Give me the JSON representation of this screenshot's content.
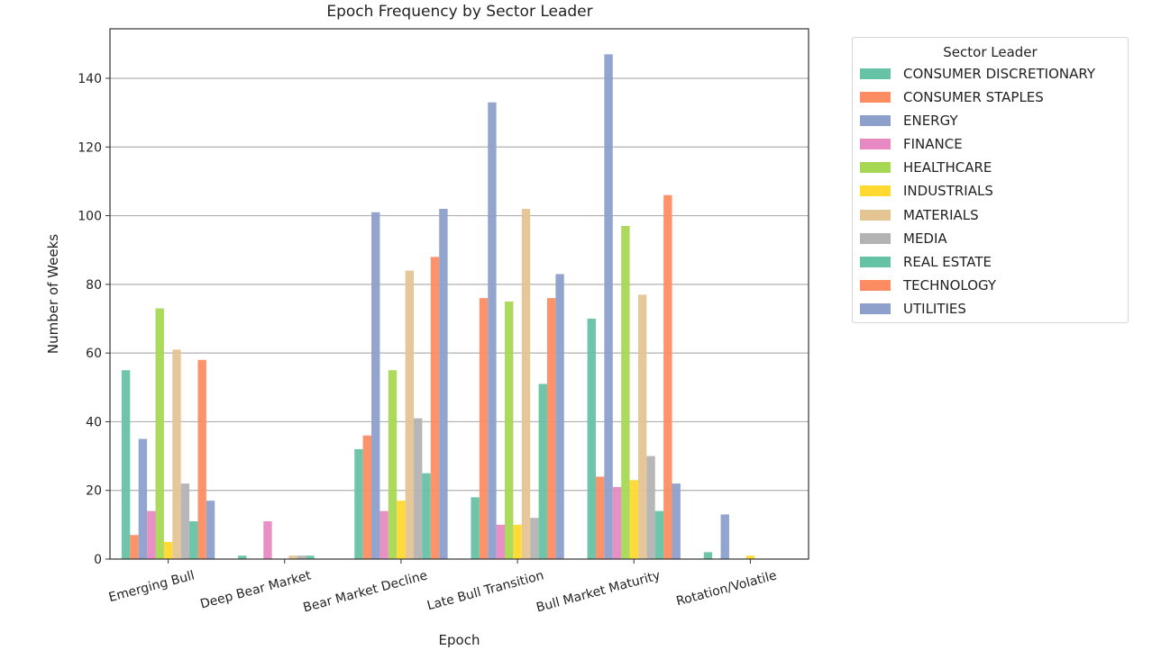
{
  "chart_data": {
    "type": "bar",
    "title": "Epoch Frequency by Sector Leader",
    "xlabel": "Epoch",
    "ylabel": "Number of Weeks",
    "ylim": [
      0,
      154
    ],
    "yticks": [
      0,
      20,
      40,
      60,
      80,
      100,
      120,
      140
    ],
    "grid": "y",
    "legend_title": "Sector Leader",
    "legend_position": "outside upper right",
    "categories": [
      "Emerging Bull",
      "Deep Bear Market",
      "Bear Market Decline",
      "Late Bull Transition",
      "Bull Market Maturity",
      "Rotation/Volatile"
    ],
    "series": [
      {
        "name": "CONSUMER DISCRETIONARY",
        "color": "#66c2a5",
        "values": [
          55,
          1,
          32,
          18,
          70,
          2
        ]
      },
      {
        "name": "CONSUMER STAPLES",
        "color": "#fc8d62",
        "values": [
          7,
          0,
          36,
          76,
          24,
          0
        ]
      },
      {
        "name": "ENERGY",
        "color": "#8da0cb",
        "values": [
          35,
          0,
          101,
          133,
          147,
          13
        ]
      },
      {
        "name": "FINANCE",
        "color": "#e78ac3",
        "values": [
          14,
          11,
          14,
          10,
          21,
          0
        ]
      },
      {
        "name": "HEALTHCARE",
        "color": "#a6d854",
        "values": [
          73,
          0,
          55,
          75,
          97,
          0
        ]
      },
      {
        "name": "INDUSTRIALS",
        "color": "#ffd92f",
        "values": [
          5,
          0,
          17,
          10,
          23,
          1
        ]
      },
      {
        "name": "MATERIALS",
        "color": "#e5c494",
        "values": [
          61,
          1,
          84,
          102,
          77,
          0
        ]
      },
      {
        "name": "MEDIA",
        "color": "#b3b3b3",
        "values": [
          22,
          1,
          41,
          12,
          30,
          0
        ]
      },
      {
        "name": "REAL ESTATE",
        "color": "#66c2a5",
        "values": [
          11,
          1,
          25,
          51,
          14,
          0
        ]
      },
      {
        "name": "TECHNOLOGY",
        "color": "#fc8d62",
        "values": [
          58,
          0,
          88,
          76,
          106,
          0
        ]
      },
      {
        "name": "UTILITIES",
        "color": "#8da0cb",
        "values": [
          17,
          0,
          102,
          83,
          22,
          0
        ]
      }
    ]
  }
}
